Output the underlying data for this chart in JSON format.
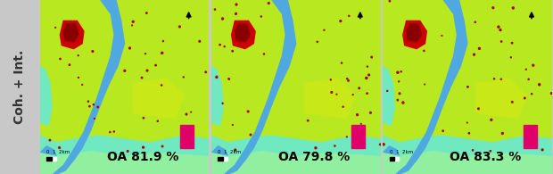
{
  "ylabel": "Coh. + Int.",
  "ylabel_fontsize": 10,
  "panel_bg": "#c8c8c8",
  "veg_color": "#b8e820",
  "veg_light": "#d0f040",
  "water_color": "#50a8e0",
  "wetland_color": "#70e8c0",
  "wetland2_color": "#90f0a0",
  "urban_color": "#cc0000",
  "urban_dark": "#880000",
  "legend_patch_color": "#e0006a",
  "oa_values": [
    "81.9",
    "79.8",
    "83.3"
  ],
  "oa_fontsize": 10,
  "n_maps": 3,
  "fig_width": 6.2,
  "fig_height": 1.95,
  "panel_label_color": "#333333",
  "dot_color": "#aa0000",
  "scalebar_text": "0  1  2km"
}
